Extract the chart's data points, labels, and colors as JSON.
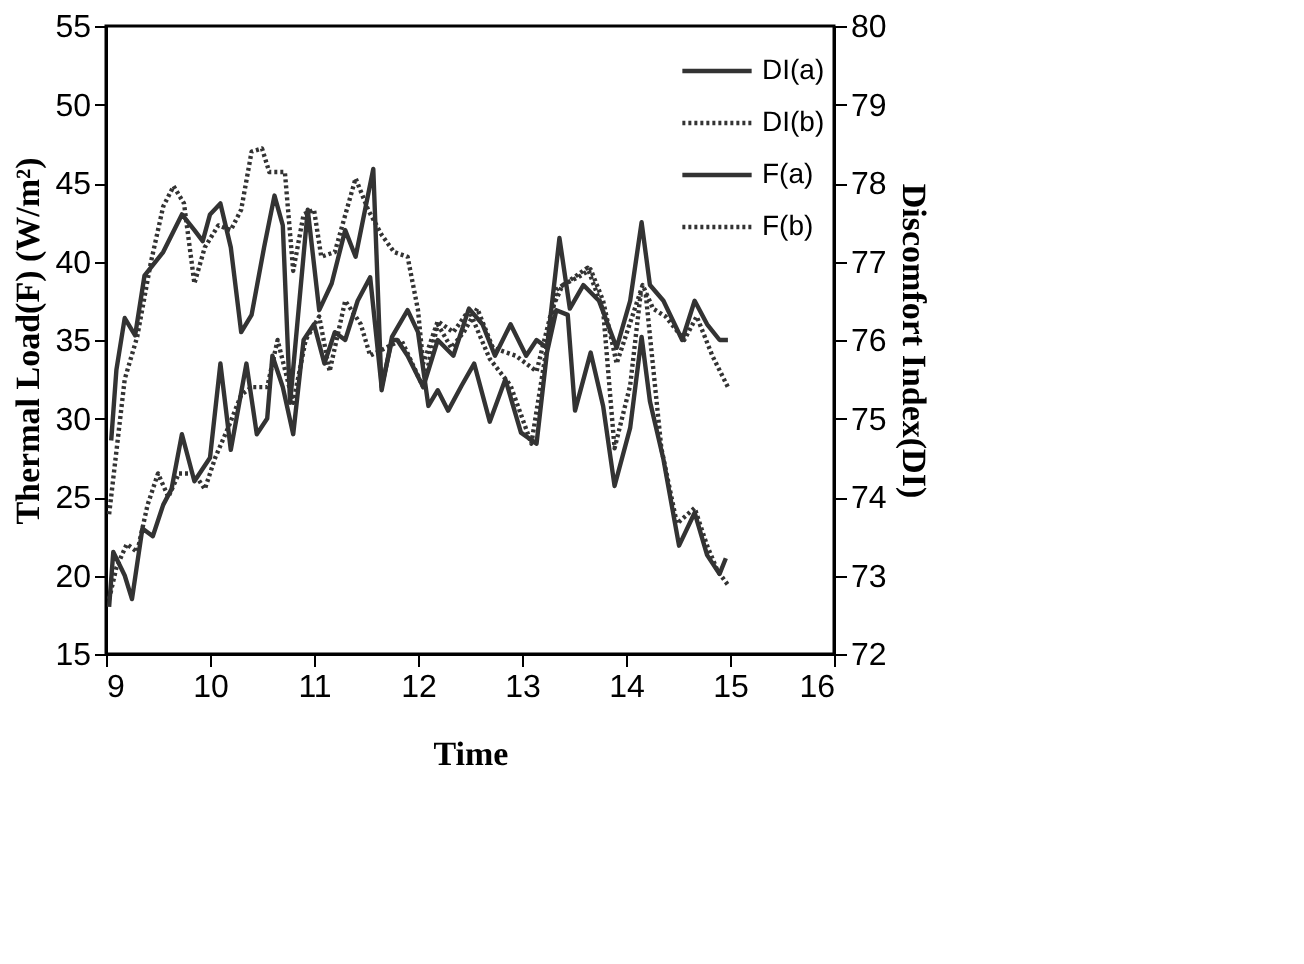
{
  "chart_data": {
    "type": "line",
    "xlabel": "Time",
    "ylabel": "Thermal Load(F)  (W/m²)",
    "y2label": "Discomfort Index(DI)",
    "xlim": [
      9,
      16
    ],
    "xticks": [
      9,
      10,
      11,
      12,
      13,
      14,
      15,
      16
    ],
    "ylim": [
      15,
      55
    ],
    "yticks": [
      15,
      20,
      25,
      30,
      35,
      40,
      45,
      50,
      55
    ],
    "y2lim": [
      72,
      80
    ],
    "y2ticks": [
      72,
      73,
      74,
      75,
      76,
      77,
      78,
      79,
      80
    ],
    "grid": false,
    "legend": "top right",
    "marker": "none",
    "series": [
      {
        "name": "DI(a)",
        "color": "#333333",
        "axis": "y2",
        "line_style": "solid",
        "x": [
          9.03,
          9.07,
          9.18,
          9.25,
          9.35,
          9.45,
          9.55,
          9.63,
          9.73,
          9.85,
          10.0,
          10.1,
          10.2,
          10.35,
          10.45,
          10.55,
          10.6,
          10.7,
          10.8,
          10.9,
          11.0,
          11.1,
          11.2,
          11.3,
          11.42,
          11.54,
          11.65,
          11.75,
          11.8,
          11.9,
          12.05,
          12.19,
          12.34,
          12.49,
          12.62,
          12.74,
          12.89,
          13.04,
          13.14,
          13.24,
          13.36,
          13.46,
          13.59,
          13.74,
          13.91,
          14.04,
          14.15,
          14.23,
          14.36,
          14.54,
          14.66,
          14.78,
          14.9,
          14.98
        ],
        "values": [
          72.6,
          73.3,
          73.0,
          72.7,
          73.6,
          73.5,
          73.9,
          74.1,
          74.8,
          74.2,
          74.5,
          75.7,
          74.6,
          75.7,
          74.8,
          75.0,
          75.8,
          75.4,
          74.8,
          76.0,
          76.2,
          75.7,
          76.1,
          76.0,
          76.5,
          76.8,
          75.4,
          76.0,
          76.0,
          75.8,
          75.4,
          76.0,
          75.8,
          76.4,
          76.2,
          75.8,
          76.2,
          75.8,
          76.0,
          75.9,
          77.3,
          76.4,
          76.7,
          76.5,
          75.9,
          76.5,
          77.5,
          76.7,
          76.5,
          76.0,
          76.5,
          76.2,
          76.0,
          76.0
        ]
      },
      {
        "name": "DI(b)",
        "color": "#333333",
        "axis": "y2",
        "line_style": "dotted",
        "x": [
          9.03,
          9.1,
          9.2,
          9.3,
          9.4,
          9.5,
          9.6,
          9.7,
          9.85,
          9.95,
          10.05,
          10.18,
          10.3,
          10.4,
          10.55,
          10.65,
          10.8,
          10.92,
          11.05,
          11.15,
          11.3,
          11.45,
          11.54,
          11.69,
          11.84,
          12.05,
          12.19,
          12.32,
          12.44,
          12.57,
          12.72,
          12.94,
          13.14,
          13.29,
          13.39,
          13.54,
          13.66,
          13.78,
          13.91,
          14.06,
          14.16,
          14.26,
          14.38,
          14.56,
          14.68,
          14.83,
          14.98
        ],
        "values": [
          72.7,
          73.1,
          73.4,
          73.3,
          73.9,
          74.3,
          74.0,
          74.3,
          74.3,
          74.1,
          74.5,
          74.9,
          75.3,
          75.4,
          75.4,
          76.0,
          75.2,
          76.0,
          76.3,
          75.6,
          76.5,
          76.2,
          75.8,
          75.9,
          76.0,
          75.4,
          76.2,
          75.9,
          76.1,
          76.4,
          75.9,
          75.8,
          75.6,
          76.4,
          76.7,
          76.8,
          76.9,
          76.5,
          75.7,
          76.3,
          76.7,
          76.4,
          76.3,
          76.0,
          76.3,
          75.8,
          75.4
        ]
      },
      {
        "name": "F(a)",
        "color": "#333333",
        "line_style": "solid",
        "x": [
          9.05,
          9.1,
          9.18,
          9.28,
          9.37,
          9.55,
          9.73,
          9.85,
          9.93,
          10.0,
          10.1,
          10.2,
          10.3,
          10.4,
          10.52,
          10.62,
          10.7,
          10.77,
          10.94,
          11.05,
          11.17,
          11.3,
          11.4,
          11.57,
          11.65,
          11.75,
          11.9,
          12.0,
          12.1,
          12.19,
          12.29,
          12.42,
          12.54,
          12.69,
          12.84,
          12.99,
          13.14,
          13.24,
          13.33,
          13.44,
          13.51,
          13.66,
          13.78,
          13.89,
          14.04,
          14.15,
          14.23,
          14.36,
          14.51,
          14.66,
          14.78,
          14.9,
          14.96
        ],
        "values": [
          28.6,
          33.1,
          36.4,
          35.3,
          39.1,
          40.6,
          43.0,
          42.0,
          41.3,
          43.0,
          43.7,
          40.9,
          35.5,
          36.6,
          40.9,
          44.2,
          42.3,
          31.0,
          43.3,
          36.9,
          38.6,
          42.0,
          40.3,
          45.9,
          31.8,
          35.2,
          36.9,
          35.5,
          30.8,
          31.8,
          30.5,
          32.1,
          33.5,
          29.8,
          32.5,
          29.1,
          28.4,
          34.2,
          36.9,
          36.6,
          30.5,
          34.2,
          30.8,
          25.7,
          29.4,
          35.2,
          31.1,
          27.4,
          21.9,
          24.0,
          21.3,
          20.1,
          21.1
        ]
      },
      {
        "name": "F(b)",
        "color": "#333333",
        "line_style": "dotted",
        "x": [
          9.03,
          9.18,
          9.3,
          9.43,
          9.55,
          9.65,
          9.75,
          9.85,
          9.95,
          10.08,
          10.2,
          10.3,
          10.4,
          10.5,
          10.57,
          10.72,
          10.8,
          10.9,
          11.0,
          11.07,
          11.2,
          11.4,
          11.52,
          11.65,
          11.77,
          11.9,
          12.0,
          12.05,
          12.19,
          12.34,
          12.49,
          12.69,
          12.89,
          13.09,
          13.22,
          13.33,
          13.48,
          13.63,
          13.78,
          13.89,
          14.04,
          14.14,
          14.19,
          14.34,
          14.49,
          14.66,
          14.78,
          14.88,
          14.98
        ],
        "values": [
          23.9,
          32.5,
          35.2,
          39.9,
          43.5,
          44.8,
          43.7,
          38.6,
          40.9,
          42.3,
          42.0,
          43.3,
          47.0,
          47.2,
          45.7,
          45.7,
          39.4,
          43.0,
          43.3,
          40.3,
          40.6,
          45.3,
          43.3,
          41.7,
          40.6,
          40.3,
          36.9,
          33.5,
          36.2,
          35.5,
          36.9,
          33.8,
          32.1,
          28.4,
          33.8,
          38.2,
          38.9,
          39.6,
          36.9,
          28.1,
          32.1,
          37.9,
          37.9,
          28.1,
          23.3,
          24.3,
          21.9,
          20.3,
          19.4
        ]
      }
    ]
  }
}
